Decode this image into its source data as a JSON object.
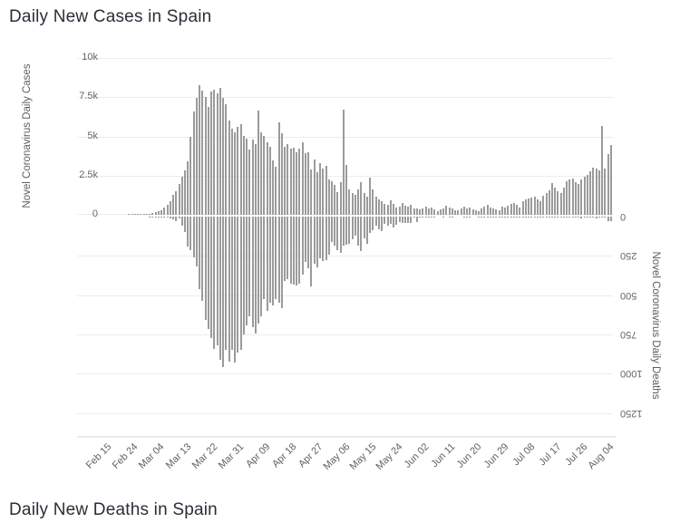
{
  "header": {
    "title": "Daily New Cases in Spain"
  },
  "footer": {
    "title": "Daily New Deaths in Spain"
  },
  "bar_color": "#9b9b9b",
  "chart_data": [
    {
      "type": "bar",
      "title": "Daily New Cases in Spain",
      "ylabel": "Novel Coronavirus Daily Cases",
      "ylim": [
        0,
        10000
      ],
      "y_tick_labels": [
        "10k",
        "7.5k",
        "5k",
        "2.5k",
        "0"
      ],
      "grid": true,
      "legend": "none",
      "x_start": "Feb 15",
      "x_tick_interval_days": 9,
      "x_tick_labels": [
        "Feb 15",
        "Feb 24",
        "Mar 04",
        "Mar 13",
        "Mar 22",
        "Mar 31",
        "Apr 09",
        "Apr 18",
        "Apr 27",
        "May 06",
        "May 15",
        "May 24",
        "Jun 02",
        "Jun 11",
        "Jun 20",
        "Jun 29",
        "Jul 08",
        "Jul 17",
        "Jul 26",
        "Aug 04"
      ],
      "values": [
        0,
        0,
        0,
        0,
        0,
        0,
        0,
        0,
        3,
        14,
        13,
        22,
        31,
        26,
        13,
        84,
        120,
        165,
        230,
        310,
        435,
        615,
        850,
        1266,
        1522,
        1963,
        2446,
        2833,
        3431,
        4946,
        6584,
        7457,
        8271,
        7933,
        7516,
        6875,
        7846,
        7967,
        7719,
        8102,
        7472,
        7026,
        6023,
        5478,
        5267,
        5600,
        5756,
        5051,
        4830,
        4167,
        4790,
        4520,
        6640,
        5270,
        5051,
        4600,
        4350,
        3477,
        3045,
        5910,
        5183,
        4350,
        4499,
        4218,
        4266,
        3968,
        4211,
        4635,
        3905,
        3995,
        2870,
        3524,
        2706,
        3308,
        2954,
        3100,
        2260,
        2144,
        1880,
        1460,
        2074,
        6680,
        3173,
        1594,
        1410,
        1245,
        1620,
        2074,
        1410,
        1150,
        2350,
        1620,
        1150,
        980,
        860,
        720,
        640,
        930,
        680,
        460,
        520,
        780,
        590,
        510,
        660,
        420,
        380,
        340,
        410,
        500,
        390,
        480,
        320,
        260,
        350,
        420,
        580,
        450,
        390,
        310,
        280,
        430,
        520,
        390,
        460,
        350,
        300,
        250,
        380,
        510,
        620,
        480,
        420,
        350,
        290,
        510,
        440,
        560,
        680,
        730,
        620,
        480,
        890,
        970,
        1040,
        1110,
        1160,
        980,
        850,
        1210,
        1360,
        1590,
        2040,
        1720,
        1480,
        1360,
        1750,
        2150,
        2250,
        2340,
        2060,
        1950,
        2280,
        2400,
        2550,
        2790,
        2980,
        2920,
        2850,
        5673,
        2923,
        3875,
        4462
      ]
    },
    {
      "type": "bar",
      "title": "Daily New Deaths in Spain",
      "ylabel": "Novel Coronavirus Daily Deaths",
      "orientation": "rotated-180",
      "ylim": [
        0,
        1250
      ],
      "y_tick_labels": [
        "0",
        "250",
        "500",
        "750",
        "1000",
        "1250"
      ],
      "grid": true,
      "legend": "none",
      "x_start": "Feb 15",
      "values": [
        0,
        0,
        0,
        0,
        0,
        0,
        0,
        0,
        0,
        0,
        0,
        0,
        0,
        0,
        0,
        1,
        2,
        1,
        4,
        5,
        7,
        8,
        9,
        19,
        31,
        12,
        60,
        97,
        191,
        213,
        262,
        320,
        462,
        539,
        656,
        718,
        773,
        844,
        821,
        913,
        961,
        849,
        923,
        850,
        932,
        864,
        850,
        749,
        694,
        637,
        704,
        747,
        683,
        634,
        525,
        603,
        547,
        567,
        523,
        551,
        585,
        410,
        399,
        430,
        435,
        440,
        428,
        367,
        288,
        331,
        445,
        301,
        325,
        268,
        281,
        276,
        244,
        164,
        185,
        213,
        229,
        185,
        179,
        176,
        143,
        123,
        184,
        217,
        138,
        176,
        104,
        87,
        59,
        83,
        95,
        48,
        56,
        48,
        70,
        50,
        35,
        39,
        38,
        39,
        43,
        2,
        35,
        1,
        2,
        5,
        4,
        1,
        1,
        0,
        0,
        1,
        0,
        1,
        1,
        0,
        0,
        0,
        1,
        1,
        1,
        0,
        0,
        1,
        2,
        2,
        1,
        2,
        2,
        1,
        2,
        1,
        2,
        2,
        4,
        3,
        2,
        1,
        5,
        3,
        4,
        2,
        3,
        4,
        6,
        3,
        2,
        5,
        4,
        3,
        8,
        5,
        2,
        3,
        5,
        4,
        2,
        6,
        9,
        5,
        3,
        8,
        7,
        12,
        5,
        2,
        1,
        26,
        27
      ]
    }
  ]
}
